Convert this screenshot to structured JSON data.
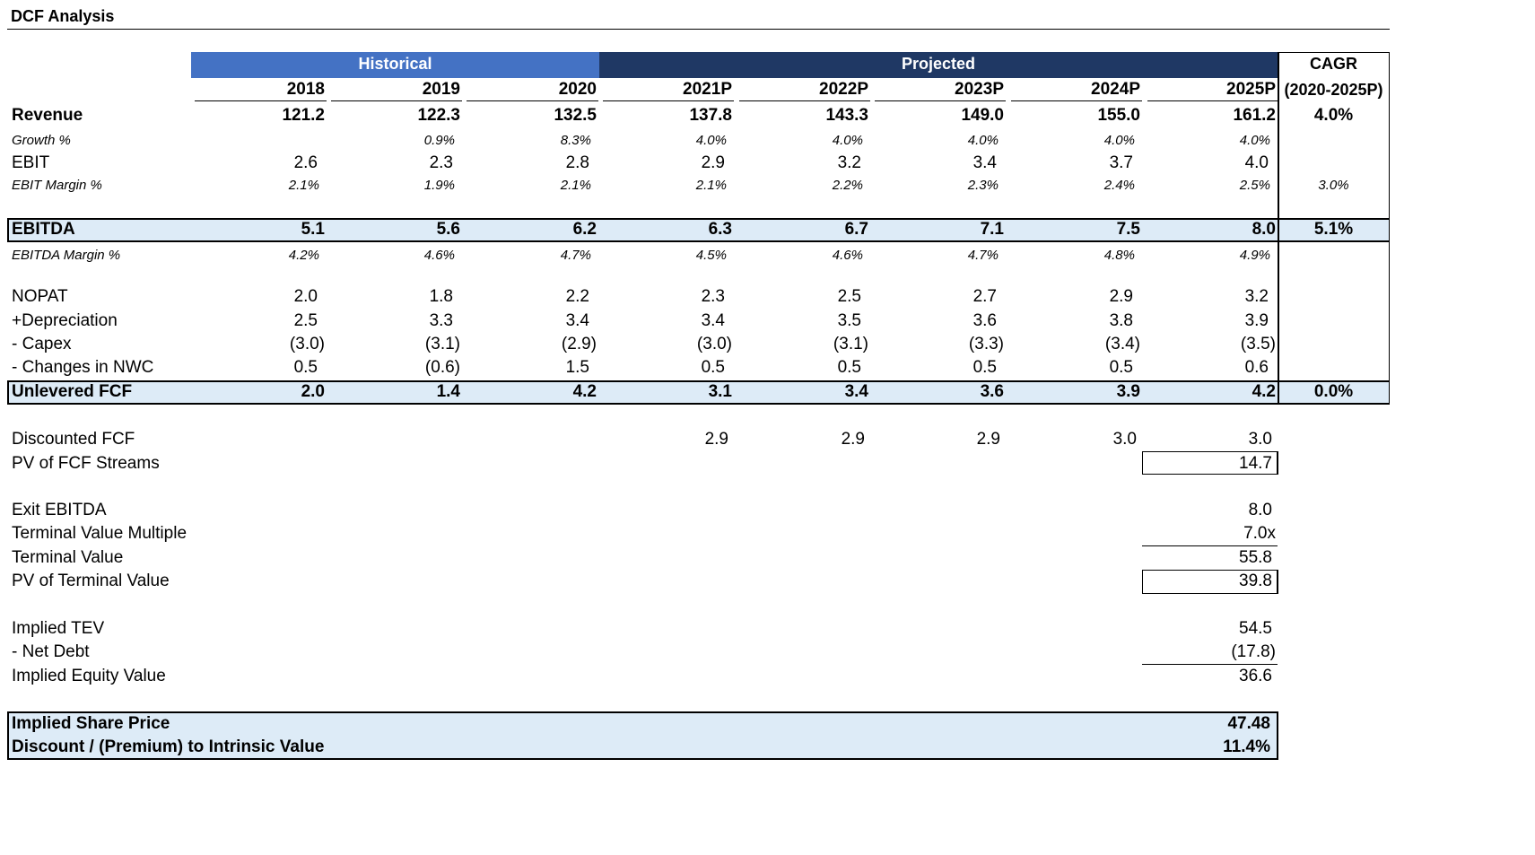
{
  "title": "DCF Analysis",
  "header": {
    "historical": "Historical",
    "projected": "Projected",
    "cagr_top": "CAGR",
    "cagr_bottom": "(2020-2025P)"
  },
  "colors": {
    "historical_bar": "#4472C4",
    "projected_bar": "#1F3864",
    "highlight": "#DDEBF7"
  },
  "years": [
    "2018",
    "2019",
    "2020",
    "2021P",
    "2022P",
    "2023P",
    "2024P",
    "2025P"
  ],
  "rows": [
    {
      "id": "revenue",
      "label": "Revenue",
      "style": "bold",
      "values": [
        "121.2",
        "122.3",
        "132.5",
        "137.8",
        "143.3",
        "149.0",
        "155.0",
        "161.2"
      ],
      "cagr": "4.0%"
    },
    {
      "id": "growth",
      "label": "Growth %",
      "style": "italic",
      "values": [
        "",
        "0.9%",
        "8.3%",
        "4.0%",
        "4.0%",
        "4.0%",
        "4.0%",
        "4.0%"
      ],
      "cagr": ""
    },
    {
      "id": "ebit",
      "label": "EBIT",
      "style": "normal",
      "values": [
        "2.6",
        "2.3",
        "2.8",
        "2.9",
        "3.2",
        "3.4",
        "3.7",
        "4.0"
      ],
      "cagr": ""
    },
    {
      "id": "ebit_margin",
      "label": "EBIT Margin %",
      "style": "italic",
      "values": [
        "2.1%",
        "1.9%",
        "2.1%",
        "2.1%",
        "2.2%",
        "2.3%",
        "2.4%",
        "2.5%"
      ],
      "cagr": "3.0%"
    },
    {
      "id": "ebitda",
      "label": "EBITDA",
      "style": "highlight",
      "values": [
        "5.1",
        "5.6",
        "6.2",
        "6.3",
        "6.7",
        "7.1",
        "7.5",
        "8.0"
      ],
      "cagr": "5.1%"
    },
    {
      "id": "ebitda_margin",
      "label": "EBITDA Margin %",
      "style": "italic",
      "values": [
        "4.2%",
        "4.6%",
        "4.7%",
        "4.5%",
        "4.6%",
        "4.7%",
        "4.8%",
        "4.9%"
      ],
      "cagr": ""
    },
    {
      "id": "nopat",
      "label": "NOPAT",
      "style": "normal",
      "values": [
        "2.0",
        "1.8",
        "2.2",
        "2.3",
        "2.5",
        "2.7",
        "2.9",
        "3.2"
      ],
      "cagr": ""
    },
    {
      "id": "depreciation",
      "label": "+Depreciation",
      "style": "normal",
      "values": [
        "2.5",
        "3.3",
        "3.4",
        "3.4",
        "3.5",
        "3.6",
        "3.8",
        "3.9"
      ],
      "cagr": ""
    },
    {
      "id": "capex",
      "label": "- Capex",
      "style": "normal",
      "values": [
        "(3.0)",
        "(3.1)",
        "(2.9)",
        "(3.0)",
        "(3.1)",
        "(3.3)",
        "(3.4)",
        "(3.5)"
      ],
      "cagr": ""
    },
    {
      "id": "nwc",
      "label": "- Changes in NWC",
      "style": "normal",
      "values": [
        "0.5",
        "(0.6)",
        "1.5",
        "0.5",
        "0.5",
        "0.5",
        "0.5",
        "0.6"
      ],
      "cagr": ""
    },
    {
      "id": "ufcf",
      "label": "Unlevered FCF",
      "style": "highlight",
      "values": [
        "2.0",
        "1.4",
        "4.2",
        "3.1",
        "3.4",
        "3.6",
        "3.9",
        "4.2"
      ],
      "cagr": "0.0%"
    }
  ],
  "discounted_fcf": {
    "label": "Discounted FCF",
    "values": [
      "2.9",
      "2.9",
      "2.9",
      "3.0",
      "3.0"
    ]
  },
  "valuation": [
    {
      "id": "pv_fcf",
      "label": "PV of FCF Streams",
      "value": "14.7"
    },
    {
      "id": "exit_ebitda",
      "label": "Exit EBITDA",
      "value": "8.0"
    },
    {
      "id": "tv_multiple",
      "label": "Terminal Value Multiple",
      "value": "7.0x"
    },
    {
      "id": "terminal_value",
      "label": "Terminal Value",
      "value": "55.8"
    },
    {
      "id": "pv_tv",
      "label": "PV of Terminal Value",
      "value": "39.8"
    },
    {
      "id": "implied_tev",
      "label": "Implied TEV",
      "value": "54.5"
    },
    {
      "id": "net_debt",
      "label": "- Net Debt",
      "value": "(17.8)"
    },
    {
      "id": "equity_value",
      "label": "Implied Equity Value",
      "value": "36.6"
    }
  ],
  "summary": [
    {
      "id": "share_price",
      "label": "Implied Share Price",
      "value": "47.48"
    },
    {
      "id": "discount",
      "label": "Discount / (Premium) to Intrinsic Value",
      "value": "11.4%"
    }
  ]
}
